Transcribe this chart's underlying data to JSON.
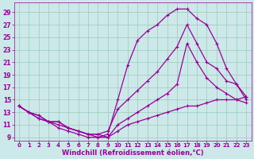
{
  "background_color": "#cce8e8",
  "line_color": "#990099",
  "marker": "+",
  "markersize": 3.5,
  "linewidth": 0.9,
  "markeredgewidth": 0.8,
  "xlabel": "Windchill (Refroidissement éolien,°C)",
  "xlabel_fontsize": 6,
  "xtick_fontsize": 5,
  "ytick_fontsize": 5.5,
  "xlim": [
    -0.5,
    23.5
  ],
  "ylim": [
    8.5,
    30.5
  ],
  "xticks": [
    0,
    1,
    2,
    3,
    4,
    5,
    6,
    7,
    8,
    9,
    10,
    11,
    12,
    13,
    14,
    15,
    16,
    17,
    18,
    19,
    20,
    21,
    22,
    23
  ],
  "yticks": [
    9,
    11,
    13,
    15,
    17,
    19,
    21,
    23,
    25,
    27,
    29
  ],
  "grid_color": "#99ccbb",
  "grid_linewidth": 0.5,
  "curves": [
    {
      "x": [
        0,
        1,
        2,
        3,
        4,
        5,
        6,
        7,
        8,
        9,
        10,
        11,
        12,
        13,
        14,
        15,
        16,
        17,
        18,
        19,
        20,
        21,
        22,
        23
      ],
      "y": [
        14,
        13,
        12.5,
        11.5,
        10.5,
        10,
        9.5,
        9,
        9,
        9.5,
        15,
        20.5,
        24.5,
        26,
        27,
        28.5,
        29.5,
        29.5,
        28,
        27,
        24,
        20,
        17.5,
        15.5
      ]
    },
    {
      "x": [
        0,
        1,
        2,
        3,
        4,
        5,
        6,
        7,
        8,
        9,
        10,
        11,
        12,
        13,
        14,
        15,
        16,
        17,
        18,
        19,
        20,
        21,
        22,
        23
      ],
      "y": [
        14,
        13,
        12.5,
        11.5,
        11,
        10.5,
        10,
        9.5,
        9.5,
        10,
        13.5,
        15,
        16.5,
        18,
        19.5,
        21.5,
        23.5,
        27,
        24,
        21,
        20,
        18,
        17.5,
        15
      ]
    },
    {
      "x": [
        0,
        1,
        2,
        3,
        4,
        5,
        6,
        7,
        8,
        9,
        10,
        11,
        12,
        13,
        14,
        15,
        16,
        17,
        18,
        19,
        20,
        21,
        22,
        23
      ],
      "y": [
        14,
        13,
        12,
        11.5,
        11.5,
        10.5,
        10,
        9.5,
        9.5,
        9,
        11,
        12,
        13,
        14,
        15,
        16,
        17.5,
        24,
        21,
        18.5,
        17,
        16,
        15,
        14.5
      ]
    },
    {
      "x": [
        0,
        1,
        2,
        3,
        4,
        5,
        6,
        7,
        8,
        9,
        10,
        11,
        12,
        13,
        14,
        15,
        16,
        17,
        18,
        19,
        20,
        21,
        22,
        23
      ],
      "y": [
        14,
        13,
        12,
        11.5,
        11.5,
        10.5,
        10,
        9.5,
        9,
        9,
        10,
        11,
        11.5,
        12,
        12.5,
        13,
        13.5,
        14,
        14,
        14.5,
        15,
        15,
        15,
        15.5
      ]
    }
  ]
}
